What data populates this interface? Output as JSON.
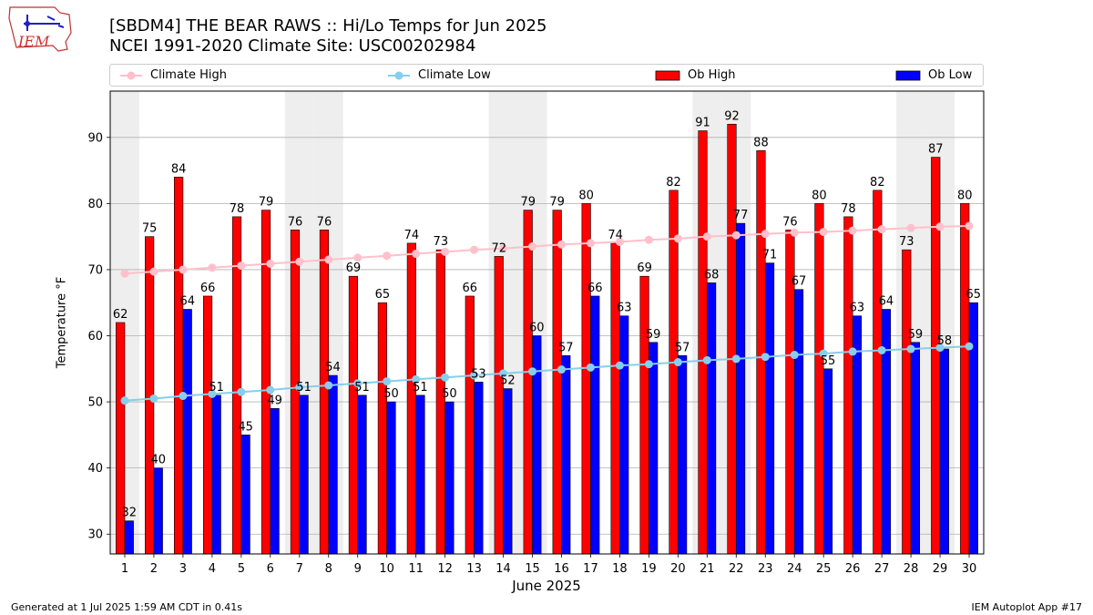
{
  "header": {
    "logo_text": "IEM",
    "title": "[SBDM4] THE BEAR RAWS :: Hi/Lo Temps for Jun 2025",
    "subtitle": "NCEI 1991-2020 Climate Site: USC00202984"
  },
  "footer": {
    "left": "Generated at 1 Jul 2025 1:59 AM CDT in 0.41s",
    "right": "IEM Autoplot App #17"
  },
  "colors": {
    "ob_high": "#ff0000",
    "ob_low": "#0000ff",
    "climate_high": "#ffc0cb",
    "climate_low": "#87ceeb",
    "weekend_shade": "#eeeeee",
    "grid": "#b0b0b0"
  },
  "chart_data": {
    "type": "bar",
    "xlabel": "June 2025",
    "ylabel": "Temperature °F",
    "ylim": [
      27,
      97
    ],
    "yticks": [
      30,
      40,
      50,
      60,
      70,
      80,
      90
    ],
    "grid": "horizontal",
    "legend_position": "top",
    "categories": [
      1,
      2,
      3,
      4,
      5,
      6,
      7,
      8,
      9,
      10,
      11,
      12,
      13,
      14,
      15,
      16,
      17,
      18,
      19,
      20,
      21,
      22,
      23,
      24,
      25,
      26,
      27,
      28,
      29,
      30
    ],
    "shaded_weekend_days": [
      1,
      7,
      8,
      14,
      15,
      21,
      22,
      28,
      29
    ],
    "series": [
      {
        "name": "Climate High",
        "kind": "line",
        "values": [
          69.4,
          69.7,
          70.0,
          70.3,
          70.6,
          70.9,
          71.2,
          71.5,
          71.8,
          72.1,
          72.4,
          72.7,
          73.0,
          73.2,
          73.5,
          73.8,
          74.0,
          74.2,
          74.5,
          74.7,
          75.0,
          75.2,
          75.4,
          75.6,
          75.7,
          75.9,
          76.1,
          76.3,
          76.5,
          76.6
        ]
      },
      {
        "name": "Climate Low",
        "kind": "line",
        "values": [
          50.2,
          50.5,
          50.9,
          51.2,
          51.5,
          51.8,
          52.2,
          52.5,
          52.8,
          53.1,
          53.4,
          53.7,
          54.0,
          54.3,
          54.6,
          54.9,
          55.2,
          55.5,
          55.7,
          56.0,
          56.3,
          56.5,
          56.8,
          57.1,
          57.3,
          57.6,
          57.8,
          58.0,
          58.2,
          58.4
        ]
      },
      {
        "name": "Ob High",
        "kind": "bar",
        "values": [
          62,
          75,
          84,
          66,
          78,
          79,
          76,
          76,
          69,
          65,
          74,
          73,
          66,
          72,
          79,
          79,
          80,
          74,
          69,
          82,
          91,
          92,
          88,
          76,
          80,
          78,
          82,
          73,
          87,
          80
        ]
      },
      {
        "name": "Ob Low",
        "kind": "bar",
        "values": [
          32,
          40,
          64,
          51,
          45,
          49,
          51,
          54,
          51,
          50,
          51,
          50,
          53,
          52,
          60,
          57,
          66,
          63,
          59,
          57,
          68,
          77,
          71,
          67,
          55,
          63,
          64,
          59,
          58,
          65
        ]
      }
    ]
  }
}
